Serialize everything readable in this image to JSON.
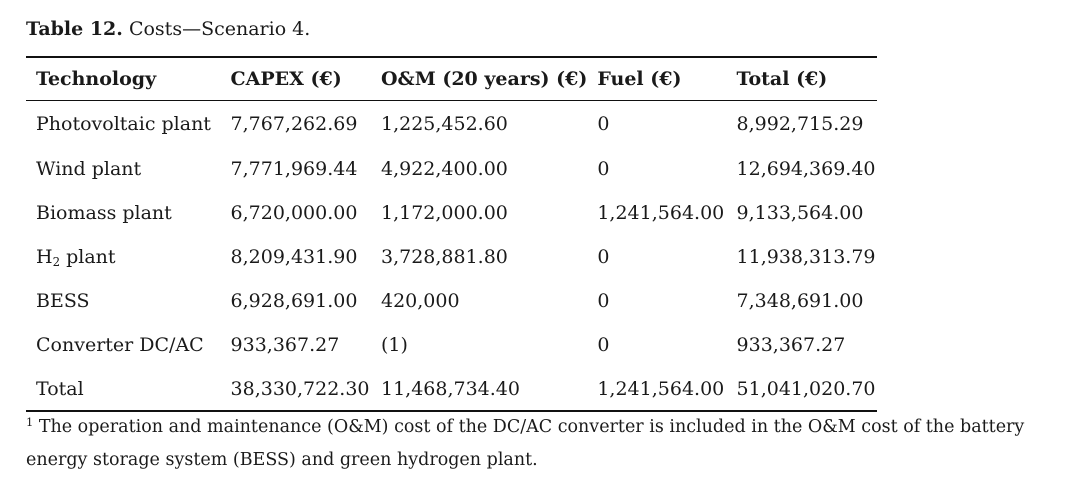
{
  "caption": {
    "label": "Table 12.",
    "text": "Costs—Scenario 4."
  },
  "table": {
    "headers": [
      "Technology",
      "CAPEX (€)",
      "O&M (20 years) (€)",
      "Fuel (€)",
      "Total (€)"
    ],
    "rows": [
      {
        "tech_pre": "Photovoltaic plant",
        "tech_sub": "",
        "tech_post": "",
        "capex": "7,767,262.69",
        "om": "1,225,452.60",
        "fuel": "0",
        "total": "8,992,715.29"
      },
      {
        "tech_pre": "Wind plant",
        "tech_sub": "",
        "tech_post": "",
        "capex": "7,771,969.44",
        "om": "4,922,400.00",
        "fuel": "0",
        "total": "12,694,369.40"
      },
      {
        "tech_pre": "Biomass plant",
        "tech_sub": "",
        "tech_post": "",
        "capex": "6,720,000.00",
        "om": "1,172,000.00",
        "fuel": "1,241,564.00",
        "total": "9,133,564.00"
      },
      {
        "tech_pre": "H",
        "tech_sub": "2",
        "tech_post": " plant",
        "capex": "8,209,431.90",
        "om": "3,728,881.80",
        "fuel": "0",
        "total": "11,938,313.79"
      },
      {
        "tech_pre": "BESS",
        "tech_sub": "",
        "tech_post": "",
        "capex": "6,928,691.00",
        "om": "420,000",
        "fuel": "0",
        "total": "7,348,691.00"
      },
      {
        "tech_pre": "Converter DC/AC",
        "tech_sub": "",
        "tech_post": "",
        "capex": "933,367.27",
        "om": "(1)",
        "fuel": "0",
        "total": "933,367.27"
      },
      {
        "tech_pre": "Total",
        "tech_sub": "",
        "tech_post": "",
        "capex": "38,330,722.30",
        "om": "11,468,734.40",
        "fuel": "1,241,564.00",
        "total": "51,041,020.70"
      }
    ]
  },
  "footnote": {
    "marker": "1",
    "text": "The operation and maintenance (O&M) cost of the DC/AC converter is included in the O&M cost of the battery energy storage system (BESS) and green hydrogen plant."
  }
}
